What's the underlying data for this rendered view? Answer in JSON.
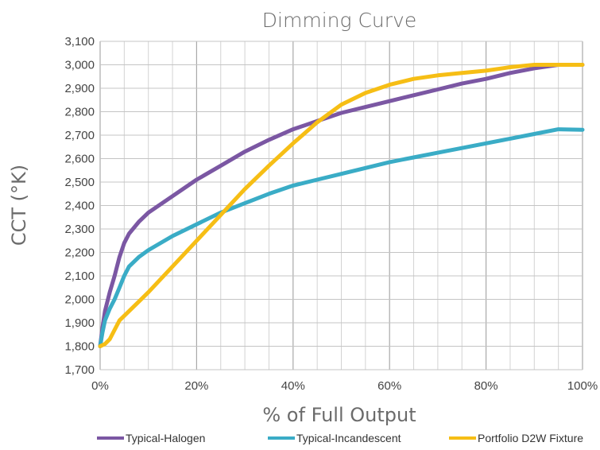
{
  "chart_data": {
    "type": "line",
    "title": "Dimming Curve",
    "xlabel": "% of Full Output",
    "ylabel": "CCT (°K)",
    "xlim": [
      0,
      100
    ],
    "ylim": [
      1700,
      3100
    ],
    "x_ticks": [
      0,
      20,
      40,
      60,
      80,
      100
    ],
    "x_tick_labels": [
      "0%",
      "20%",
      "40%",
      "60%",
      "80%",
      "100%"
    ],
    "y_ticks": [
      1700,
      1800,
      1900,
      2000,
      2100,
      2200,
      2300,
      2400,
      2500,
      2600,
      2700,
      2800,
      2900,
      3000,
      3100
    ],
    "y_tick_labels": [
      "1,700",
      "1,800",
      "1,900",
      "2,000",
      "2,100",
      "2,200",
      "2,300",
      "2,400",
      "2,500",
      "2,600",
      "2,700",
      "2,800",
      "2,900",
      "3,000",
      "3,100"
    ],
    "grid": true,
    "legend_position": "bottom",
    "series": [
      {
        "name": "Typical-Halogen",
        "color": "#7b57a3",
        "points": [
          [
            0,
            1800
          ],
          [
            0.5,
            1880
          ],
          [
            1,
            1950
          ],
          [
            2,
            2030
          ],
          [
            3,
            2100
          ],
          [
            4,
            2180
          ],
          [
            5,
            2240
          ],
          [
            6,
            2280
          ],
          [
            8,
            2330
          ],
          [
            10,
            2370
          ],
          [
            15,
            2440
          ],
          [
            20,
            2510
          ],
          [
            25,
            2570
          ],
          [
            30,
            2630
          ],
          [
            35,
            2680
          ],
          [
            40,
            2725
          ],
          [
            45,
            2760
          ],
          [
            50,
            2795
          ],
          [
            55,
            2820
          ],
          [
            60,
            2845
          ],
          [
            65,
            2870
          ],
          [
            70,
            2895
          ],
          [
            75,
            2920
          ],
          [
            80,
            2940
          ],
          [
            85,
            2965
          ],
          [
            90,
            2985
          ],
          [
            95,
            3000
          ],
          [
            100,
            3000
          ]
        ]
      },
      {
        "name": "Typical-Incandescent",
        "color": "#3aacc6",
        "points": [
          [
            0,
            1800
          ],
          [
            0.5,
            1860
          ],
          [
            1,
            1910
          ],
          [
            2,
            1960
          ],
          [
            3,
            2000
          ],
          [
            4,
            2050
          ],
          [
            5,
            2100
          ],
          [
            6,
            2140
          ],
          [
            8,
            2180
          ],
          [
            10,
            2210
          ],
          [
            15,
            2270
          ],
          [
            20,
            2320
          ],
          [
            25,
            2370
          ],
          [
            30,
            2410
          ],
          [
            35,
            2450
          ],
          [
            40,
            2485
          ],
          [
            45,
            2510
          ],
          [
            50,
            2535
          ],
          [
            55,
            2560
          ],
          [
            60,
            2585
          ],
          [
            65,
            2605
          ],
          [
            70,
            2625
          ],
          [
            75,
            2645
          ],
          [
            80,
            2665
          ],
          [
            85,
            2685
          ],
          [
            90,
            2705
          ],
          [
            95,
            2725
          ],
          [
            100,
            2723
          ]
        ]
      },
      {
        "name": "Portfolio D2W Fixture",
        "color": "#f6be15",
        "points": [
          [
            0,
            1800
          ],
          [
            1,
            1810
          ],
          [
            2,
            1830
          ],
          [
            3,
            1870
          ],
          [
            4,
            1910
          ],
          [
            6,
            1950
          ],
          [
            8,
            1990
          ],
          [
            10,
            2030
          ],
          [
            15,
            2140
          ],
          [
            20,
            2250
          ],
          [
            25,
            2360
          ],
          [
            30,
            2470
          ],
          [
            35,
            2570
          ],
          [
            40,
            2665
          ],
          [
            45,
            2755
          ],
          [
            50,
            2830
          ],
          [
            55,
            2880
          ],
          [
            60,
            2915
          ],
          [
            65,
            2940
          ],
          [
            70,
            2955
          ],
          [
            75,
            2965
          ],
          [
            80,
            2975
          ],
          [
            85,
            2990
          ],
          [
            90,
            3000
          ],
          [
            95,
            3000
          ],
          [
            100,
            3000
          ]
        ]
      }
    ]
  }
}
